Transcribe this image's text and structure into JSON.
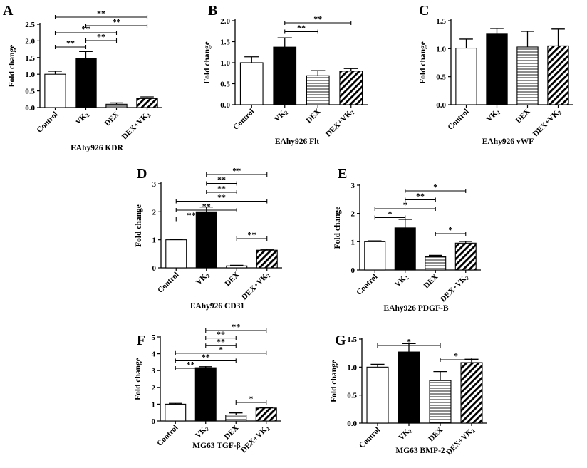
{
  "figure": {
    "colors": {
      "ink": "#000000",
      "bar_fill": "#ffffff",
      "vk2_fill": "#000000"
    }
  },
  "chart_data": [
    {
      "panel": "A",
      "type": "bar",
      "title": "EAhy926 KDR",
      "ylabel": "Fold change",
      "ylim": [
        0,
        2.5
      ],
      "yticks": [
        "0.0",
        "0.5",
        "1.0",
        "1.5",
        "2.0",
        "2.5"
      ],
      "categories": [
        "Control",
        "VK2",
        "DEX",
        "DEX+VK2"
      ],
      "values": [
        1.0,
        1.48,
        0.1,
        0.27
      ],
      "errors": [
        0.09,
        0.2,
        0.04,
        0.05
      ],
      "significance": [
        {
          "from": 0,
          "to": 3,
          "label": "**"
        },
        {
          "from": 1,
          "to": 3,
          "label": "**"
        },
        {
          "from": 0,
          "to": 2,
          "label": "**"
        },
        {
          "from": 1,
          "to": 2,
          "label": "**"
        },
        {
          "from": 0,
          "to": 1,
          "label": "**"
        }
      ]
    },
    {
      "panel": "B",
      "type": "bar",
      "title": "EAhy926 Flt",
      "ylabel": "Fold change",
      "ylim": [
        0,
        2.0
      ],
      "yticks": [
        "0.0",
        "0.5",
        "1.0",
        "1.5",
        "2.0"
      ],
      "categories": [
        "Control",
        "VK2",
        "DEX",
        "DEX+VK2"
      ],
      "values": [
        1.0,
        1.37,
        0.69,
        0.8
      ],
      "errors": [
        0.14,
        0.22,
        0.12,
        0.06
      ],
      "significance": [
        {
          "from": 1,
          "to": 3,
          "label": "**"
        },
        {
          "from": 1,
          "to": 2,
          "label": "**"
        }
      ]
    },
    {
      "panel": "C",
      "type": "bar",
      "title": "EAhy926 vWF",
      "ylabel": "Fold change",
      "ylim": [
        0,
        1.5
      ],
      "yticks": [
        "0.0",
        "0.5",
        "1.0",
        "1.5"
      ],
      "categories": [
        "Control",
        "VK2",
        "DEX",
        "DEX+VK2"
      ],
      "values": [
        1.01,
        1.26,
        1.03,
        1.05
      ],
      "errors": [
        0.16,
        0.1,
        0.28,
        0.3
      ],
      "significance": []
    },
    {
      "panel": "D",
      "type": "bar",
      "title": "EAhy926 CD31",
      "ylabel": "Fold change",
      "ylim": [
        0,
        3
      ],
      "yticks": [
        "0",
        "1",
        "2",
        "3"
      ],
      "categories": [
        "Control",
        "VK2",
        "DEX",
        "DEX+VK2"
      ],
      "values": [
        1.0,
        2.0,
        0.07,
        0.63
      ],
      "errors": [
        0.02,
        0.17,
        0.02,
        0.03
      ],
      "significance": [
        {
          "from": 1,
          "to": 3,
          "label": "**"
        },
        {
          "from": 1,
          "to": 2,
          "label": "**"
        },
        {
          "from": 1,
          "to": 2,
          "label": "**"
        },
        {
          "from": 0,
          "to": 3,
          "label": "**"
        },
        {
          "from": 0,
          "to": 2,
          "label": "**"
        },
        {
          "from": 0,
          "to": 1,
          "label": "**"
        },
        {
          "from": 2,
          "to": 3,
          "label": "**"
        }
      ]
    },
    {
      "panel": "E",
      "type": "bar",
      "title": "EAhy926 PDGF-B",
      "ylabel": "Fold change",
      "ylim": [
        0,
        3
      ],
      "yticks": [
        "0",
        "1",
        "2",
        "3"
      ],
      "categories": [
        "Control",
        "VK2",
        "DEX",
        "DEX+VK2"
      ],
      "values": [
        1.0,
        1.49,
        0.47,
        0.95
      ],
      "errors": [
        0.03,
        0.3,
        0.05,
        0.06
      ],
      "significance": [
        {
          "from": 1,
          "to": 3,
          "label": "*"
        },
        {
          "from": 1,
          "to": 2,
          "label": "**"
        },
        {
          "from": 0,
          "to": 2,
          "label": "*"
        },
        {
          "from": 0,
          "to": 1,
          "label": "*"
        },
        {
          "from": 2,
          "to": 3,
          "label": "*"
        }
      ]
    },
    {
      "panel": "F",
      "type": "bar",
      "title": "MG63 TGF-β",
      "ylabel": "Fold change",
      "ylim": [
        0,
        5
      ],
      "yticks": [
        "0",
        "1",
        "2",
        "3",
        "4",
        "5"
      ],
      "categories": [
        "Control",
        "VK2",
        "DEX",
        "DEX+VK2"
      ],
      "values": [
        1.0,
        3.17,
        0.35,
        0.77
      ],
      "errors": [
        0.05,
        0.06,
        0.13,
        0.03
      ],
      "significance": [
        {
          "from": 1,
          "to": 3,
          "label": "**"
        },
        {
          "from": 1,
          "to": 2,
          "label": "**"
        },
        {
          "from": 1,
          "to": 2,
          "label": "**"
        },
        {
          "from": 0,
          "to": 3,
          "label": "*"
        },
        {
          "from": 0,
          "to": 2,
          "label": "**"
        },
        {
          "from": 0,
          "to": 1,
          "label": "**"
        },
        {
          "from": 2,
          "to": 3,
          "label": "*"
        }
      ]
    },
    {
      "panel": "G",
      "type": "bar",
      "title": "MG63 BMP-2",
      "ylabel": "Fold change",
      "ylim": [
        0,
        1.5
      ],
      "yticks": [
        "0.0",
        "0.5",
        "1.0",
        "1.5"
      ],
      "categories": [
        "Control",
        "VK2",
        "DEX",
        "DEX+VK2"
      ],
      "values": [
        1.0,
        1.27,
        0.76,
        1.08
      ],
      "errors": [
        0.05,
        0.15,
        0.16,
        0.06
      ],
      "significance": [
        {
          "from": 0,
          "to": 2,
          "label": "*"
        },
        {
          "from": 2,
          "to": 3,
          "label": "*"
        }
      ]
    }
  ]
}
